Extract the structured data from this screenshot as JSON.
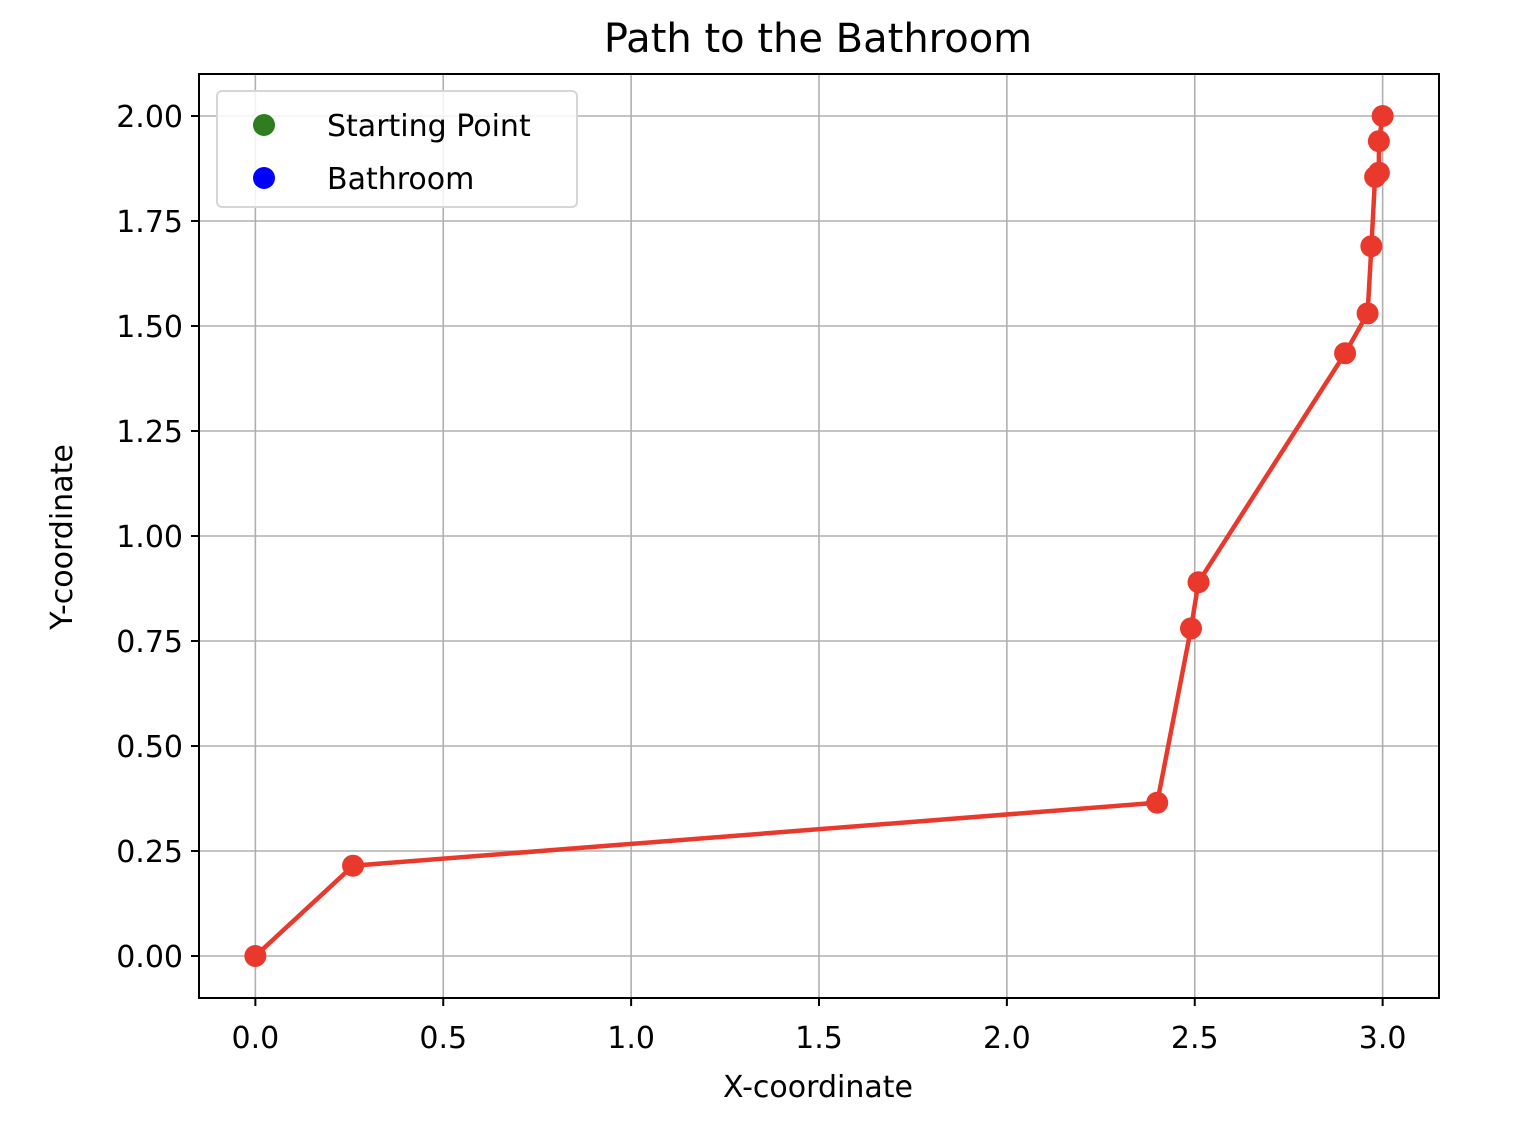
{
  "chart_data": {
    "type": "line",
    "title": "Path to the Bathroom",
    "xlabel": "X-coordinate",
    "ylabel": "Y-coordinate",
    "xlim": [
      -0.15,
      3.15
    ],
    "ylim": [
      -0.1,
      2.1
    ],
    "xticks": [
      0.0,
      0.5,
      1.0,
      1.5,
      2.0,
      2.5,
      3.0
    ],
    "xtick_labels": [
      "0.0",
      "0.5",
      "1.0",
      "1.5",
      "2.0",
      "2.5",
      "3.0"
    ],
    "yticks": [
      0.0,
      0.25,
      0.5,
      0.75,
      1.0,
      1.25,
      1.5,
      1.75,
      2.0
    ],
    "ytick_labels": [
      "0.00",
      "0.25",
      "0.50",
      "0.75",
      "1.00",
      "1.25",
      "1.50",
      "1.75",
      "2.00"
    ],
    "grid": true,
    "legend_position": "top-left",
    "legend": [
      {
        "label": "Starting Point",
        "color": "#2e7d1f"
      },
      {
        "label": "Bathroom",
        "color": "#0000ff"
      }
    ],
    "series": [
      {
        "color": "#e8392c",
        "x": [
          0.0,
          0.26,
          2.4,
          2.49,
          2.51,
          2.9,
          2.96,
          2.97,
          2.98,
          2.99,
          2.99,
          3.0
        ],
        "y": [
          0.0,
          0.215,
          0.365,
          0.78,
          0.89,
          1.435,
          1.53,
          1.69,
          1.855,
          1.865,
          1.94,
          2.0
        ]
      }
    ]
  }
}
